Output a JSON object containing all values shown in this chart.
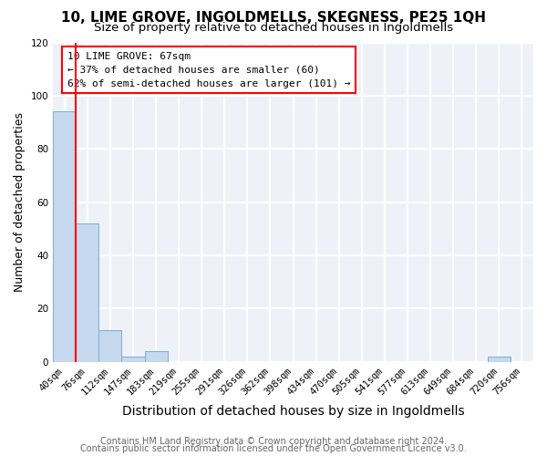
{
  "title": "10, LIME GROVE, INGOLDMELLS, SKEGNESS, PE25 1QH",
  "subtitle": "Size of property relative to detached houses in Ingoldmells",
  "xlabel": "Distribution of detached houses by size in Ingoldmells",
  "ylabel": "Number of detached properties",
  "bin_labels": [
    "40sqm",
    "76sqm",
    "112sqm",
    "147sqm",
    "183sqm",
    "219sqm",
    "255sqm",
    "291sqm",
    "326sqm",
    "362sqm",
    "398sqm",
    "434sqm",
    "470sqm",
    "505sqm",
    "541sqm",
    "577sqm",
    "613sqm",
    "649sqm",
    "684sqm",
    "720sqm",
    "756sqm"
  ],
  "bar_values": [
    94,
    52,
    12,
    2,
    4,
    0,
    0,
    0,
    0,
    0,
    0,
    0,
    0,
    0,
    0,
    0,
    0,
    0,
    0,
    2,
    0
  ],
  "bar_color": "#c5d8ed",
  "bar_edge_color": "#7aafd4",
  "ylim": [
    0,
    120
  ],
  "yticks": [
    0,
    20,
    40,
    60,
    80,
    100,
    120
  ],
  "annotation_text": "10 LIME GROVE: 67sqm\n← 37% of detached houses are smaller (60)\n62% of semi-detached houses are larger (101) →",
  "annotation_box_color": "white",
  "annotation_box_edge_color": "red",
  "red_line_color": "red",
  "footer_line1": "Contains HM Land Registry data © Crown copyright and database right 2024.",
  "footer_line2": "Contains public sector information licensed under the Open Government Licence v3.0.",
  "background_color": "#eef2f8",
  "grid_color": "white",
  "title_fontsize": 11,
  "subtitle_fontsize": 9.5,
  "xlabel_fontsize": 10,
  "ylabel_fontsize": 9,
  "annotation_fontsize": 8,
  "footer_fontsize": 7,
  "tick_fontsize": 7.5
}
